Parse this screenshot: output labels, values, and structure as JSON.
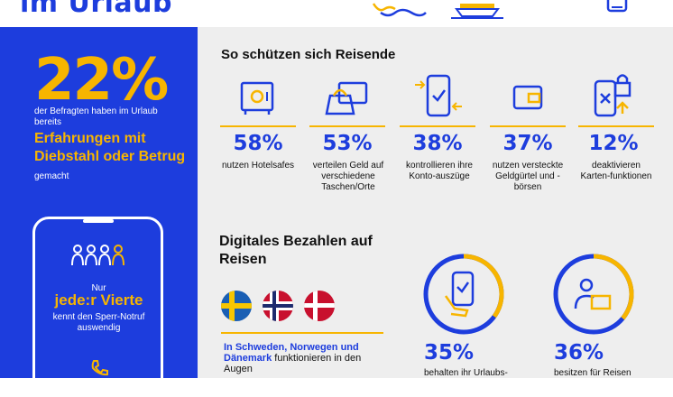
{
  "header": {
    "title": "im Urlaub"
  },
  "left": {
    "big_percent": "22%",
    "percent_desc": "der Befragten haben im Urlaub bereits",
    "experience_highlight": "Erfahrungen mit Diebstahl oder Betrug",
    "experience_tail": "gemacht",
    "phone_card": {
      "nur": "Nur",
      "vierte": "jede:r Vierte",
      "notruf": "kennt den Sperr-Notruf auswendig"
    }
  },
  "protection": {
    "title": "So schützen sich Reisende",
    "items": [
      {
        "icon": "safe-icon",
        "percent": "58%",
        "desc": "nutzen Hotelsafes"
      },
      {
        "icon": "bags-icon",
        "percent": "53%",
        "desc": "verteilen Geld auf verschiedene Taschen/Orte"
      },
      {
        "icon": "phone-sync-icon",
        "percent": "38%",
        "desc": "kontrollieren ihre Konto-auszüge"
      },
      {
        "icon": "wallet-icon",
        "percent": "37%",
        "desc": "nutzen versteckte Geldgürtel und -börsen"
      },
      {
        "icon": "phone-lock-icon",
        "percent": "12%",
        "desc": "deaktivieren Karten-funktionen"
      }
    ]
  },
  "digital": {
    "title": "Digitales Bezahlen auf Reisen",
    "flags_bold": "In Schweden, Norwegen und Dänemark",
    "flags_rest": "funktionieren in den Augen",
    "stats": [
      {
        "percent": "35%",
        "desc": "behalten ihr Urlaubs-"
      },
      {
        "percent": "36%",
        "desc": "besitzen für Reisen"
      }
    ],
    "ring_fractions": [
      0.35,
      0.36
    ]
  },
  "colors": {
    "blue": "#1d3ddd",
    "yellow": "#f7b500",
    "panel": "#eeeeee"
  }
}
